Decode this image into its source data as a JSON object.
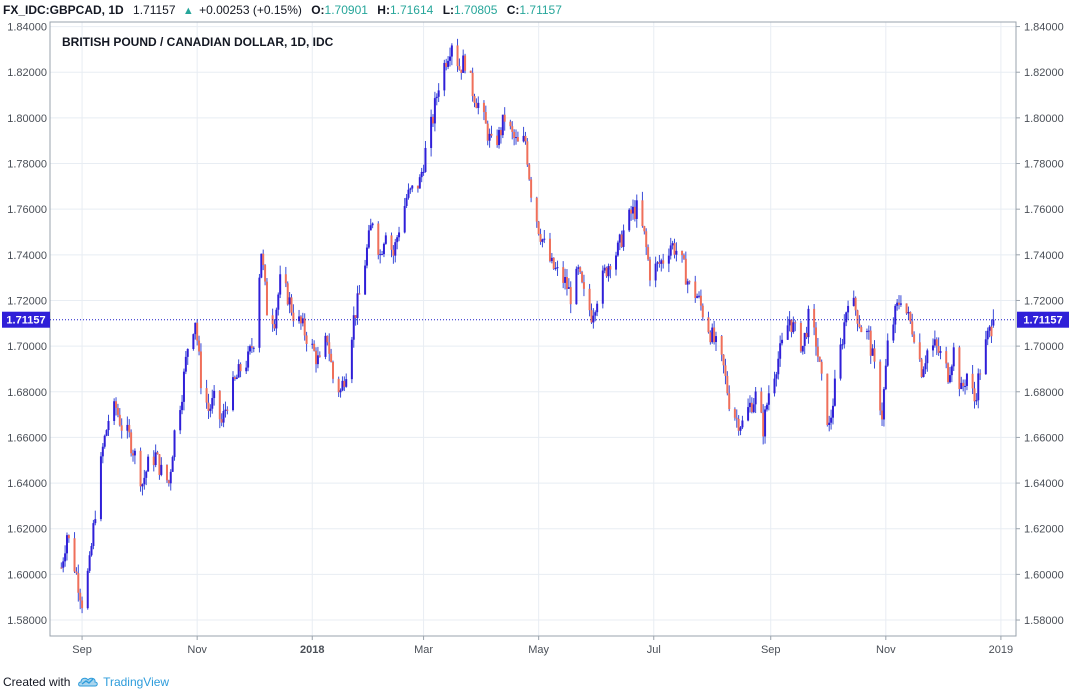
{
  "header": {
    "symbol": "FX_IDC:GBPCAD, 1D",
    "last": "1.71157",
    "up_icon": "triangle-up-icon",
    "change": "+0.00253 (+0.15%)",
    "open_label": "O:",
    "open_value": "1.70901",
    "high_label": "H:",
    "high_value": "1.71614",
    "low_label": "L:",
    "low_value": "1.70805",
    "close_label": "C:",
    "close_value": "1.71157"
  },
  "footer": {
    "created_with": "Created with",
    "brand": "TradingView",
    "logo_icon": "tradingview-cloud-icon"
  },
  "colors": {
    "up": "#2f1fd8",
    "down": "#ef6f5a",
    "wick": "#3a4bd8",
    "grid": "#e8edf3",
    "price_line": "#1a1ac8",
    "price_tag": "#2f1fd8"
  },
  "chart_data": {
    "type": "candlestick",
    "title": "BRITISH POUND / CANADIAN DOLLAR, 1D, IDC",
    "ylim": [
      1.573,
      1.842
    ],
    "y_ticks": [
      "1.58000",
      "1.60000",
      "1.62000",
      "1.64000",
      "1.66000",
      "1.68000",
      "1.70000",
      "1.72000",
      "1.74000",
      "1.76000",
      "1.78000",
      "1.80000",
      "1.82000",
      "1.84000"
    ],
    "x_ticks": [
      "Sep",
      "Nov",
      "2018",
      "Mar",
      "May",
      "Jul",
      "Sep",
      "Nov",
      "2019"
    ],
    "x_tick_dates": [
      "2017-09-01",
      "2017-11-01",
      "2018-01-01",
      "2018-03-01",
      "2018-05-01",
      "2018-07-01",
      "2018-09-01",
      "2018-11-01",
      "2019-01-01"
    ],
    "current_price": "1.71157",
    "grid": true,
    "closes": [
      [
        "2017-08-21",
        1.603
      ],
      [
        "2017-08-24",
        1.618
      ],
      [
        "2017-08-29",
        1.6
      ],
      [
        "2017-09-01",
        1.588
      ],
      [
        "2017-09-05",
        1.604
      ],
      [
        "2017-09-08",
        1.628
      ],
      [
        "2017-09-12",
        1.655
      ],
      [
        "2017-09-15",
        1.668
      ],
      [
        "2017-09-19",
        1.673
      ],
      [
        "2017-09-22",
        1.665
      ],
      [
        "2017-09-26",
        1.66
      ],
      [
        "2017-09-29",
        1.652
      ],
      [
        "2017-10-03",
        1.64
      ],
      [
        "2017-10-06",
        1.648
      ],
      [
        "2017-10-10",
        1.652
      ],
      [
        "2017-10-13",
        1.645
      ],
      [
        "2017-10-17",
        1.64
      ],
      [
        "2017-10-20",
        1.662
      ],
      [
        "2017-10-24",
        1.68
      ],
      [
        "2017-10-27",
        1.7
      ],
      [
        "2017-10-31",
        1.712
      ],
      [
        "2017-11-03",
        1.685
      ],
      [
        "2017-11-07",
        1.672
      ],
      [
        "2017-11-10",
        1.676
      ],
      [
        "2017-11-14",
        1.666
      ],
      [
        "2017-11-17",
        1.676
      ],
      [
        "2017-11-21",
        1.684
      ],
      [
        "2017-11-24",
        1.69
      ],
      [
        "2017-11-28",
        1.694
      ],
      [
        "2017-12-01",
        1.703
      ],
      [
        "2017-12-05",
        1.742
      ],
      [
        "2017-12-08",
        1.716
      ],
      [
        "2017-12-12",
        1.712
      ],
      [
        "2017-12-15",
        1.728
      ],
      [
        "2017-12-19",
        1.722
      ],
      [
        "2017-12-22",
        1.714
      ],
      [
        "2017-12-27",
        1.708
      ],
      [
        "2018-01-02",
        1.697
      ],
      [
        "2018-01-05",
        1.692
      ],
      [
        "2018-01-09",
        1.704
      ],
      [
        "2018-01-12",
        1.686
      ],
      [
        "2018-01-16",
        1.68
      ],
      [
        "2018-01-19",
        1.69
      ],
      [
        "2018-01-23",
        1.712
      ],
      [
        "2018-01-26",
        1.722
      ],
      [
        "2018-01-30",
        1.742
      ],
      [
        "2018-02-02",
        1.756
      ],
      [
        "2018-02-06",
        1.74
      ],
      [
        "2018-02-09",
        1.752
      ],
      [
        "2018-02-13",
        1.74
      ],
      [
        "2018-02-16",
        1.752
      ],
      [
        "2018-02-20",
        1.765
      ],
      [
        "2018-02-23",
        1.768
      ],
      [
        "2018-02-27",
        1.772
      ],
      [
        "2018-03-02",
        1.785
      ],
      [
        "2018-03-06",
        1.8
      ],
      [
        "2018-03-09",
        1.815
      ],
      [
        "2018-03-13",
        1.826
      ],
      [
        "2018-03-16",
        1.834
      ],
      [
        "2018-03-20",
        1.822
      ],
      [
        "2018-03-23",
        1.825
      ],
      [
        "2018-03-27",
        1.812
      ],
      [
        "2018-03-30",
        1.806
      ],
      [
        "2018-04-03",
        1.796
      ],
      [
        "2018-04-06",
        1.788
      ],
      [
        "2018-04-10",
        1.792
      ],
      [
        "2018-04-13",
        1.8
      ],
      [
        "2018-04-17",
        1.792
      ],
      [
        "2018-04-20",
        1.788
      ],
      [
        "2018-04-24",
        1.79
      ],
      [
        "2018-04-27",
        1.768
      ],
      [
        "2018-05-01",
        1.752
      ],
      [
        "2018-05-04",
        1.744
      ],
      [
        "2018-05-08",
        1.735
      ],
      [
        "2018-05-11",
        1.732
      ],
      [
        "2018-05-15",
        1.728
      ],
      [
        "2018-05-18",
        1.722
      ],
      [
        "2018-05-22",
        1.732
      ],
      [
        "2018-05-25",
        1.722
      ],
      [
        "2018-05-29",
        1.714
      ],
      [
        "2018-06-01",
        1.722
      ],
      [
        "2018-06-05",
        1.732
      ],
      [
        "2018-06-08",
        1.738
      ],
      [
        "2018-06-12",
        1.742
      ],
      [
        "2018-06-15",
        1.75
      ],
      [
        "2018-06-19",
        1.758
      ],
      [
        "2018-06-22",
        1.76
      ],
      [
        "2018-06-26",
        1.748
      ],
      [
        "2018-06-29",
        1.732
      ],
      [
        "2018-07-03",
        1.735
      ],
      [
        "2018-07-06",
        1.738
      ],
      [
        "2018-07-10",
        1.745
      ],
      [
        "2018-07-13",
        1.742
      ],
      [
        "2018-07-17",
        1.734
      ],
      [
        "2018-07-20",
        1.726
      ],
      [
        "2018-07-24",
        1.722
      ],
      [
        "2018-07-27",
        1.715
      ],
      [
        "2018-07-31",
        1.706
      ],
      [
        "2018-08-03",
        1.7
      ],
      [
        "2018-08-07",
        1.69
      ],
      [
        "2018-08-10",
        1.676
      ],
      [
        "2018-08-14",
        1.668
      ],
      [
        "2018-08-17",
        1.666
      ],
      [
        "2018-08-21",
        1.674
      ],
      [
        "2018-08-24",
        1.678
      ],
      [
        "2018-08-28",
        1.664
      ],
      [
        "2018-08-31",
        1.68
      ],
      [
        "2018-09-04",
        1.692
      ],
      [
        "2018-09-07",
        1.7
      ],
      [
        "2018-09-11",
        1.712
      ],
      [
        "2018-09-14",
        1.706
      ],
      [
        "2018-09-18",
        1.7
      ],
      [
        "2018-09-21",
        1.712
      ],
      [
        "2018-09-25",
        1.702
      ],
      [
        "2018-09-28",
        1.684
      ],
      [
        "2018-10-02",
        1.664
      ],
      [
        "2018-10-05",
        1.682
      ],
      [
        "2018-10-09",
        1.704
      ],
      [
        "2018-10-12",
        1.722
      ],
      [
        "2018-10-16",
        1.716
      ],
      [
        "2018-10-19",
        1.708
      ],
      [
        "2018-10-23",
        1.704
      ],
      [
        "2018-10-26",
        1.69
      ],
      [
        "2018-10-30",
        1.67
      ],
      [
        "2018-11-02",
        1.7
      ],
      [
        "2018-11-06",
        1.714
      ],
      [
        "2018-11-09",
        1.722
      ],
      [
        "2018-11-13",
        1.712
      ],
      [
        "2018-11-16",
        1.706
      ],
      [
        "2018-11-20",
        1.69
      ],
      [
        "2018-11-23",
        1.698
      ],
      [
        "2018-11-27",
        1.7
      ],
      [
        "2018-11-30",
        1.696
      ],
      [
        "2018-12-04",
        1.688
      ],
      [
        "2018-12-07",
        1.698
      ],
      [
        "2018-12-11",
        1.68
      ],
      [
        "2018-12-14",
        1.688
      ],
      [
        "2018-12-18",
        1.676
      ],
      [
        "2018-12-21",
        1.69
      ],
      [
        "2018-12-25",
        1.704
      ],
      [
        "2018-12-28",
        1.711
      ]
    ]
  }
}
